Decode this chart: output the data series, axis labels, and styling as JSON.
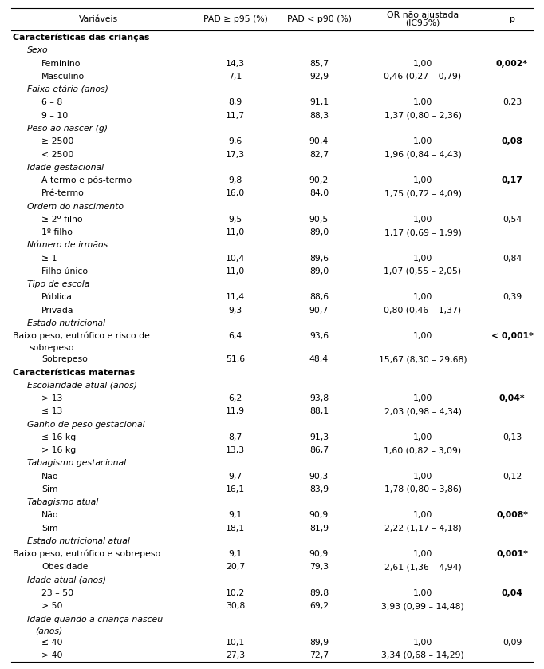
{
  "col_headers": [
    "Variáveis",
    "PAD ≥ p95 (%)",
    "PAD < p90 (%)",
    "OR não ajustada\n(IC95%)",
    "p"
  ],
  "rows": [
    {
      "text": "Características das crianças",
      "type": "section",
      "col1": "",
      "col2": "",
      "col3": "",
      "col4": "",
      "col4_bold": false
    },
    {
      "text": "Sexo",
      "type": "italic",
      "col1": "",
      "col2": "",
      "col3": "",
      "col4": "",
      "col4_bold": false
    },
    {
      "text": "Feminino",
      "type": "data2",
      "col1": "14,3",
      "col2": "85,7",
      "col3": "1,00",
      "col4": "0,002*",
      "col4_bold": true
    },
    {
      "text": "Masculino",
      "type": "data2",
      "col1": "7,1",
      "col2": "92,9",
      "col3": "0,46 (0,27 – 0,79)",
      "col4": "",
      "col4_bold": false
    },
    {
      "text": "Faixa etária (anos)",
      "type": "italic",
      "col1": "",
      "col2": "",
      "col3": "",
      "col4": "",
      "col4_bold": false
    },
    {
      "text": "6 – 8",
      "type": "data2",
      "col1": "8,9",
      "col2": "91,1",
      "col3": "1,00",
      "col4": "0,23",
      "col4_bold": false
    },
    {
      "text": "9 – 10",
      "type": "data2",
      "col1": "11,7",
      "col2": "88,3",
      "col3": "1,37 (0,80 – 2,36)",
      "col4": "",
      "col4_bold": false
    },
    {
      "text": "Peso ao nascer (g)",
      "type": "italic",
      "col1": "",
      "col2": "",
      "col3": "",
      "col4": "",
      "col4_bold": false
    },
    {
      "text": "≥ 2500",
      "type": "data2",
      "col1": "9,6",
      "col2": "90,4",
      "col3": "1,00",
      "col4": "0,08",
      "col4_bold": true
    },
    {
      "text": "< 2500",
      "type": "data2",
      "col1": "17,3",
      "col2": "82,7",
      "col3": "1,96 (0,84 – 4,43)",
      "col4": "",
      "col4_bold": false
    },
    {
      "text": "Idade gestacional",
      "type": "italic",
      "col1": "",
      "col2": "",
      "col3": "",
      "col4": "",
      "col4_bold": false
    },
    {
      "text": "A termo e pós-termo",
      "type": "data2",
      "col1": "9,8",
      "col2": "90,2",
      "col3": "1,00",
      "col4": "0,17",
      "col4_bold": true
    },
    {
      "text": "Pré-termo",
      "type": "data2",
      "col1": "16,0",
      "col2": "84,0",
      "col3": "1,75 (0,72 – 4,09)",
      "col4": "",
      "col4_bold": false
    },
    {
      "text": "Ordem do nascimento",
      "type": "italic",
      "col1": "",
      "col2": "",
      "col3": "",
      "col4": "",
      "col4_bold": false
    },
    {
      "text": "≥ 2º filho",
      "type": "data2",
      "col1": "9,5",
      "col2": "90,5",
      "col3": "1,00",
      "col4": "0,54",
      "col4_bold": false
    },
    {
      "text": "1º filho",
      "type": "data2",
      "col1": "11,0",
      "col2": "89,0",
      "col3": "1,17 (0,69 – 1,99)",
      "col4": "",
      "col4_bold": false
    },
    {
      "text": "Número de irmãos",
      "type": "italic",
      "col1": "",
      "col2": "",
      "col3": "",
      "col4": "",
      "col4_bold": false
    },
    {
      "text": "≥ 1",
      "type": "data2",
      "col1": "10,4",
      "col2": "89,6",
      "col3": "1,00",
      "col4": "0,84",
      "col4_bold": false
    },
    {
      "text": "Filho único",
      "type": "data2",
      "col1": "11,0",
      "col2": "89,0",
      "col3": "1,07 (0,55 – 2,05)",
      "col4": "",
      "col4_bold": false
    },
    {
      "text": "Tipo de escola",
      "type": "italic",
      "col1": "",
      "col2": "",
      "col3": "",
      "col4": "",
      "col4_bold": false
    },
    {
      "text": "Pública",
      "type": "data2",
      "col1": "11,4",
      "col2": "88,6",
      "col3": "1,00",
      "col4": "0,39",
      "col4_bold": false
    },
    {
      "text": "Privada",
      "type": "data2",
      "col1": "9,3",
      "col2": "90,7",
      "col3": "0,80 (0,46 – 1,37)",
      "col4": "",
      "col4_bold": false
    },
    {
      "text": "Estado nutricional",
      "type": "italic",
      "col1": "",
      "col2": "",
      "col3": "",
      "col4": "",
      "col4_bold": false
    },
    {
      "text": "Baixo peso, eutrófico e risco de",
      "type": "data0",
      "col1": "6,4",
      "col2": "93,6",
      "col3": "1,00",
      "col4": "< 0,001*",
      "col4_bold": true
    },
    {
      "text": "   sobrepeso",
      "type": "data0cont",
      "col1": "",
      "col2": "",
      "col3": "",
      "col4": "",
      "col4_bold": false
    },
    {
      "text": "Sobrepeso",
      "type": "data2",
      "col1": "51,6",
      "col2": "48,4",
      "col3": "15,67 (8,30 – 29,68)",
      "col4": "",
      "col4_bold": false
    },
    {
      "text": "Características maternas",
      "type": "section",
      "col1": "",
      "col2": "",
      "col3": "",
      "col4": "",
      "col4_bold": false
    },
    {
      "text": "Escolaridade atual (anos)",
      "type": "italic",
      "col1": "",
      "col2": "",
      "col3": "",
      "col4": "",
      "col4_bold": false
    },
    {
      "text": "> 13",
      "type": "data2",
      "col1": "6,2",
      "col2": "93,8",
      "col3": "1,00",
      "col4": "0,04*",
      "col4_bold": true
    },
    {
      "text": "≤ 13",
      "type": "data2",
      "col1": "11,9",
      "col2": "88,1",
      "col3": "2,03 (0,98 – 4,34)",
      "col4": "",
      "col4_bold": false
    },
    {
      "text": "Ganho de peso gestacional",
      "type": "italic",
      "col1": "",
      "col2": "",
      "col3": "",
      "col4": "",
      "col4_bold": false
    },
    {
      "text": "≤ 16 kg",
      "type": "data2",
      "col1": "8,7",
      "col2": "91,3",
      "col3": "1,00",
      "col4": "0,13",
      "col4_bold": false
    },
    {
      "text": "> 16 kg",
      "type": "data2",
      "col1": "13,3",
      "col2": "86,7",
      "col3": "1,60 (0,82 – 3,09)",
      "col4": "",
      "col4_bold": false
    },
    {
      "text": "Tabagismo gestacional",
      "type": "italic",
      "col1": "",
      "col2": "",
      "col3": "",
      "col4": "",
      "col4_bold": false
    },
    {
      "text": "Não",
      "type": "data2",
      "col1": "9,7",
      "col2": "90,3",
      "col3": "1,00",
      "col4": "0,12",
      "col4_bold": false
    },
    {
      "text": "Sim",
      "type": "data2",
      "col1": "16,1",
      "col2": "83,9",
      "col3": "1,78 (0,80 – 3,86)",
      "col4": "",
      "col4_bold": false
    },
    {
      "text": "Tabagismo atual",
      "type": "italic",
      "col1": "",
      "col2": "",
      "col3": "",
      "col4": "",
      "col4_bold": false
    },
    {
      "text": "Não",
      "type": "data2",
      "col1": "9,1",
      "col2": "90,9",
      "col3": "1,00",
      "col4": "0,008*",
      "col4_bold": true
    },
    {
      "text": "Sim",
      "type": "data2",
      "col1": "18,1",
      "col2": "81,9",
      "col3": "2,22 (1,17 – 4,18)",
      "col4": "",
      "col4_bold": false
    },
    {
      "text": "Estado nutricional atual",
      "type": "italic",
      "col1": "",
      "col2": "",
      "col3": "",
      "col4": "",
      "col4_bold": false
    },
    {
      "text": "Baixo peso, eutrófico e sobrepeso",
      "type": "data0",
      "col1": "9,1",
      "col2": "90,9",
      "col3": "1,00",
      "col4": "0,001*",
      "col4_bold": true
    },
    {
      "text": "Obesidade",
      "type": "data2",
      "col1": "20,7",
      "col2": "79,3",
      "col3": "2,61 (1,36 – 4,94)",
      "col4": "",
      "col4_bold": false
    },
    {
      "text": "Idade atual (anos)",
      "type": "italic",
      "col1": "",
      "col2": "",
      "col3": "",
      "col4": "",
      "col4_bold": false
    },
    {
      "text": "23 – 50",
      "type": "data2",
      "col1": "10,2",
      "col2": "89,8",
      "col3": "1,00",
      "col4": "0,04",
      "col4_bold": true
    },
    {
      "text": "> 50",
      "type": "data2",
      "col1": "30,8",
      "col2": "69,2",
      "col3": "3,93 (0,99 – 14,48)",
      "col4": "",
      "col4_bold": false
    },
    {
      "text": "Idade quando a criança nasceu",
      "type": "italic",
      "col1": "",
      "col2": "",
      "col3": "",
      "col4": "",
      "col4_bold": false
    },
    {
      "text": "(anos)",
      "type": "italiccont",
      "col1": "",
      "col2": "",
      "col3": "",
      "col4": "",
      "col4_bold": false
    },
    {
      "text": "≤ 40",
      "type": "data2",
      "col1": "10,1",
      "col2": "89,9",
      "col3": "1,00",
      "col4": "0,09",
      "col4_bold": false
    },
    {
      "text": "> 40",
      "type": "data2",
      "col1": "27,3",
      "col2": "72,7",
      "col3": "3,34 (0,68 – 14,29)",
      "col4": "",
      "col4_bold": false
    }
  ],
  "bg_color": "#ffffff",
  "text_color": "#000000",
  "font_size": 7.8
}
